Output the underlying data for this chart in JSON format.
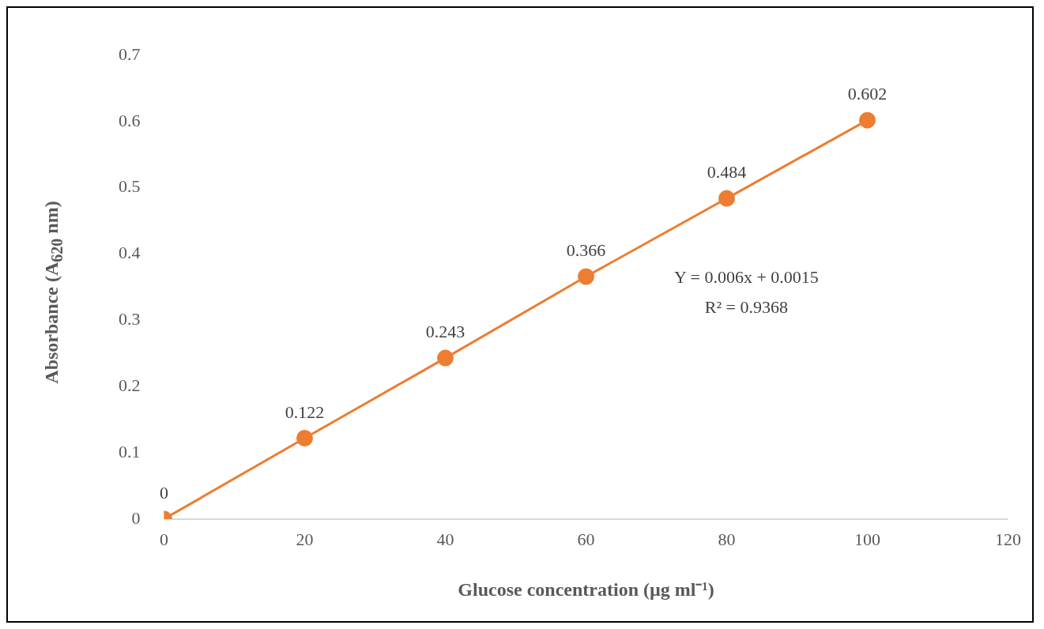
{
  "chart_data": {
    "type": "line",
    "xlabel": "Glucose concentration (µg ml⁻¹)",
    "ylabel": "Absorbance (A$_{620}$ nm)",
    "x": [
      0,
      20,
      40,
      60,
      80,
      100
    ],
    "series": [
      {
        "color": "#ed7d31",
        "values": [
          0,
          0.122,
          0.243,
          0.366,
          0.484,
          0.602
        ]
      }
    ],
    "xlim": [
      0,
      120
    ],
    "xticks": [
      0,
      20,
      40,
      60,
      80,
      100,
      120
    ],
    "ylim": [
      0,
      0.7
    ],
    "yticks": [
      0,
      0.1,
      0.2,
      0.3,
      0.4,
      0.5,
      0.6,
      0.7
    ],
    "grid": false,
    "legend": false,
    "marker": "circle",
    "line_style": "solid",
    "data_labels": true,
    "annotations": [
      "Y = 0.006x + 0.0015",
      "R² = 0.9368"
    ]
  }
}
